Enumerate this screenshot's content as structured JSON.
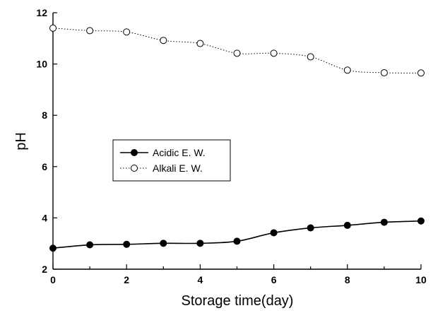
{
  "chart_data": {
    "type": "line",
    "xlabel": "Storage time(day)",
    "ylabel": "pH",
    "xlim": [
      0,
      10
    ],
    "ylim": [
      2,
      12
    ],
    "xticks": [
      0,
      2,
      4,
      6,
      8,
      10
    ],
    "yticks": [
      2,
      4,
      6,
      8,
      10,
      12
    ],
    "x": [
      0,
      1,
      2,
      3,
      4,
      5,
      6,
      7,
      8,
      9,
      10
    ],
    "series": [
      {
        "name": "Acidic E. W.",
        "values": [
          2.82,
          2.95,
          2.97,
          3.01,
          3.01,
          3.09,
          3.42,
          3.61,
          3.71,
          3.83,
          3.88
        ],
        "marker": "filled-circle",
        "line_style": "solid",
        "color": "#000000"
      },
      {
        "name": "Alkali E. W.",
        "values": [
          11.4,
          11.3,
          11.25,
          10.92,
          10.8,
          10.42,
          10.42,
          10.28,
          9.76,
          9.66,
          9.65
        ],
        "marker": "open-circle",
        "line_style": "dotted",
        "color": "#000000"
      }
    ],
    "grid": false,
    "legend_position": "center-left"
  }
}
